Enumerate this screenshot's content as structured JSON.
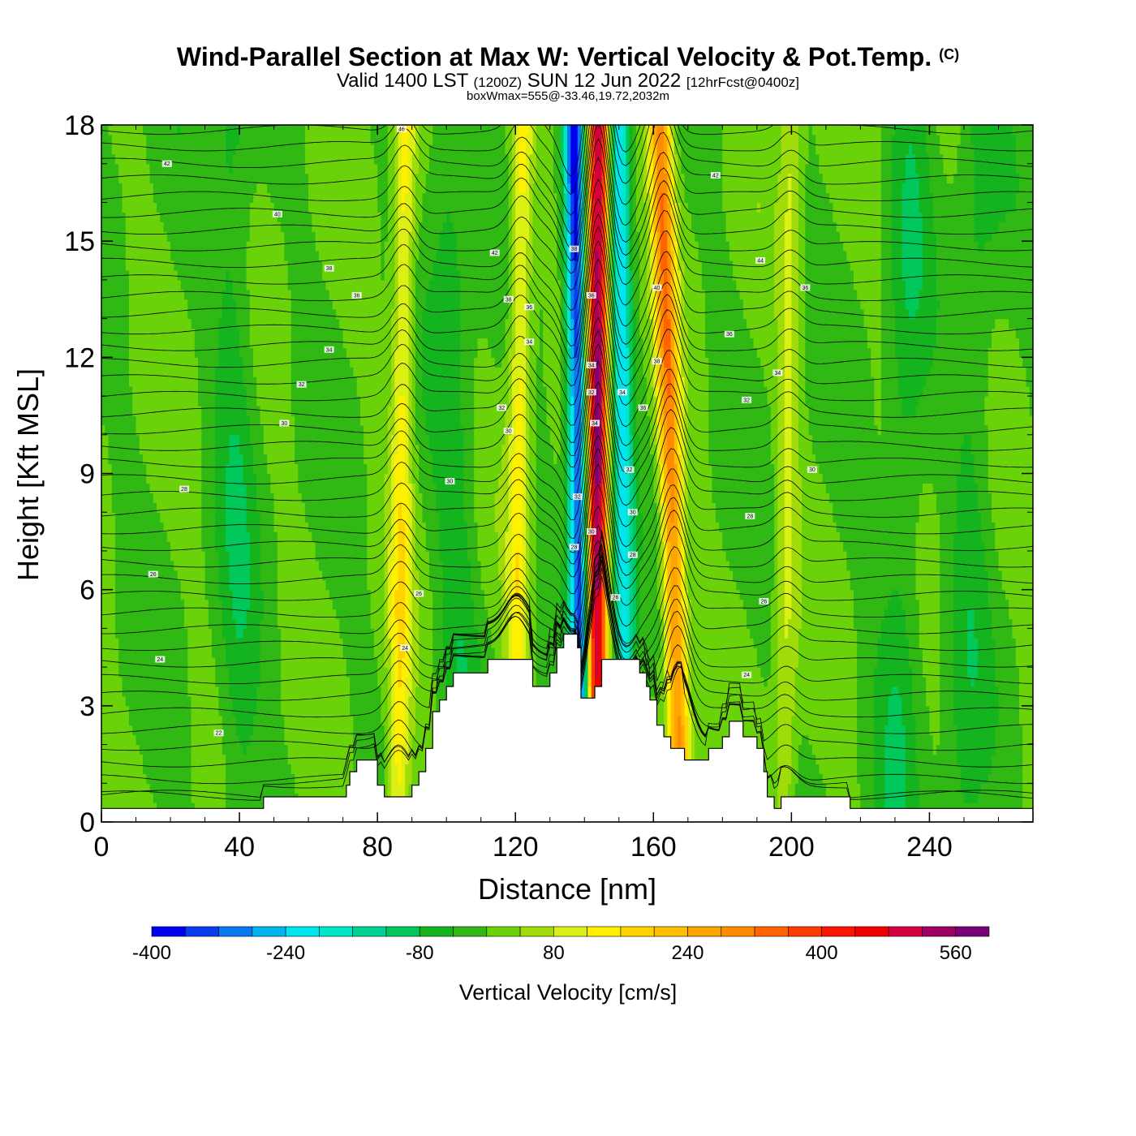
{
  "header": {
    "title": "Wind-Parallel Section at Max W: Vertical Velocity & Pot.Temp.",
    "copyright": "(C)",
    "valid_prefix": "Valid 1400 LST",
    "valid_utc": "(1200Z)",
    "valid_date": "SUN 12 Jun 2022",
    "forecast": "[12hrFcst@0400z]",
    "box_info": "boxWmax=555@-33.46,19.72,2032m"
  },
  "chart_data": {
    "type": "heatmap",
    "title": "Wind-Parallel Section at Max W: Vertical Velocity & Pot.Temp.",
    "xlabel": "Distance [nm]",
    "ylabel": "Height [Kft MSL]",
    "xlim": [
      0,
      270
    ],
    "ylim": [
      0,
      18
    ],
    "x_ticks": [
      0,
      40,
      80,
      120,
      160,
      200,
      240
    ],
    "y_ticks": [
      0,
      3,
      6,
      9,
      12,
      15,
      18
    ],
    "colorbar": {
      "label": "Vertical Velocity [cm/s]",
      "tick_values": [
        -400,
        -240,
        -80,
        80,
        240,
        400,
        560
      ],
      "tick_labels": [
        "-400",
        "-240",
        "-80",
        "80",
        "240",
        "400",
        "560"
      ],
      "bins": [
        {
          "from": -400,
          "to": -360,
          "color": "#0000f0"
        },
        {
          "from": -360,
          "to": -320,
          "color": "#0a3cf0"
        },
        {
          "from": -320,
          "to": -280,
          "color": "#0a78f0"
        },
        {
          "from": -280,
          "to": -240,
          "color": "#00b4f0"
        },
        {
          "from": -240,
          "to": -200,
          "color": "#00e6f0"
        },
        {
          "from": -200,
          "to": -160,
          "color": "#00e6c8"
        },
        {
          "from": -160,
          "to": -120,
          "color": "#00d296"
        },
        {
          "from": -120,
          "to": -80,
          "color": "#00c85a"
        },
        {
          "from": -80,
          "to": -40,
          "color": "#14b41e"
        },
        {
          "from": -40,
          "to": 0,
          "color": "#30b814"
        },
        {
          "from": 0,
          "to": 40,
          "color": "#6ad208"
        },
        {
          "from": 40,
          "to": 80,
          "color": "#a0dc0a"
        },
        {
          "from": 80,
          "to": 120,
          "color": "#dcf014"
        },
        {
          "from": 120,
          "to": 160,
          "color": "#fff000"
        },
        {
          "from": 160,
          "to": 200,
          "color": "#ffd200"
        },
        {
          "from": 200,
          "to": 240,
          "color": "#ffbe00"
        },
        {
          "from": 240,
          "to": 280,
          "color": "#ffa500"
        },
        {
          "from": 280,
          "to": 320,
          "color": "#ff8c00"
        },
        {
          "from": 320,
          "to": 360,
          "color": "#ff6400"
        },
        {
          "from": 360,
          "to": 400,
          "color": "#ff3c00"
        },
        {
          "from": 400,
          "to": 440,
          "color": "#ff1400"
        },
        {
          "from": 440,
          "to": 480,
          "color": "#f00000"
        },
        {
          "from": 480,
          "to": 520,
          "color": "#d2003c"
        },
        {
          "from": 520,
          "to": 560,
          "color": "#a00064"
        },
        {
          "from": 560,
          "to": 600,
          "color": "#780078"
        }
      ]
    },
    "background_w": 0,
    "updraft_bands": [
      {
        "x_bottom": 86,
        "x_top": 88,
        "peak": 140
      },
      {
        "x_bottom": 120,
        "x_top": 122,
        "peak": 140
      },
      {
        "x_bottom": 168,
        "x_top": 162,
        "peak": 300
      },
      {
        "x_bottom": 198,
        "x_top": 200,
        "peak": 80
      },
      {
        "x_bottom": 143,
        "x_top": 144,
        "peak": 555
      }
    ],
    "downdraft_bands": [
      {
        "x_bottom": 140,
        "x_top": 137,
        "peak": -380
      },
      {
        "x_bottom": 152,
        "x_top": 150,
        "peak": -220
      }
    ],
    "weaker_bands": [
      {
        "x_bottom": 40,
        "x_top": 38,
        "peak": -60
      },
      {
        "x_bottom": 105,
        "x_top": 100,
        "peak": -60
      },
      {
        "x_bottom": 230,
        "x_top": 235,
        "peak": -60
      },
      {
        "x_bottom": 250,
        "x_top": 255,
        "peak": -50
      }
    ],
    "terrain": [
      [
        0,
        0.35
      ],
      [
        47,
        0.35
      ],
      [
        47,
        0.65
      ],
      [
        71,
        0.65
      ],
      [
        71,
        0.95
      ],
      [
        72,
        0.95
      ],
      [
        72,
        1.3
      ],
      [
        74,
        1.3
      ],
      [
        74,
        1.6
      ],
      [
        80,
        1.6
      ],
      [
        80,
        0.95
      ],
      [
        82,
        0.95
      ],
      [
        82,
        0.65
      ],
      [
        90,
        0.65
      ],
      [
        90,
        0.95
      ],
      [
        92,
        0.95
      ],
      [
        92,
        1.3
      ],
      [
        94,
        1.3
      ],
      [
        94,
        1.9
      ],
      [
        96,
        1.9
      ],
      [
        96,
        2.85
      ],
      [
        98,
        2.85
      ],
      [
        98,
        3.15
      ],
      [
        100,
        3.15
      ],
      [
        100,
        3.5
      ],
      [
        102,
        3.5
      ],
      [
        102,
        3.85
      ],
      [
        112,
        3.85
      ],
      [
        112,
        4.2
      ],
      [
        125,
        4.2
      ],
      [
        125,
        3.5
      ],
      [
        130,
        3.5
      ],
      [
        130,
        3.85
      ],
      [
        132,
        3.85
      ],
      [
        132,
        4.5
      ],
      [
        134,
        4.5
      ],
      [
        134,
        4.85
      ],
      [
        138,
        4.85
      ],
      [
        138,
        4.5
      ],
      [
        139,
        4.5
      ],
      [
        139,
        3.2
      ],
      [
        143,
        3.2
      ],
      [
        143,
        3.5
      ],
      [
        145,
        3.5
      ],
      [
        145,
        4.2
      ],
      [
        156,
        4.2
      ],
      [
        156,
        3.85
      ],
      [
        158,
        3.85
      ],
      [
        158,
        3.5
      ],
      [
        159,
        3.5
      ],
      [
        159,
        3.15
      ],
      [
        161,
        3.15
      ],
      [
        161,
        2.5
      ],
      [
        163,
        2.5
      ],
      [
        163,
        2.2
      ],
      [
        165,
        2.2
      ],
      [
        165,
        1.9
      ],
      [
        169,
        1.9
      ],
      [
        169,
        1.6
      ],
      [
        176,
        1.6
      ],
      [
        176,
        1.9
      ],
      [
        180,
        1.9
      ],
      [
        180,
        2.2
      ],
      [
        182,
        2.2
      ],
      [
        182,
        2.6
      ],
      [
        186,
        2.6
      ],
      [
        186,
        2.2
      ],
      [
        190,
        2.2
      ],
      [
        190,
        1.9
      ],
      [
        192,
        1.9
      ],
      [
        192,
        1.3
      ],
      [
        193,
        1.3
      ],
      [
        193,
        0.65
      ],
      [
        195,
        0.65
      ],
      [
        195,
        0.35
      ],
      [
        197,
        0.35
      ],
      [
        197,
        0.65
      ],
      [
        217,
        0.65
      ],
      [
        217,
        0.35
      ],
      [
        270,
        0.35
      ]
    ],
    "contour_values": [
      24,
      26,
      28,
      30,
      32,
      34,
      36,
      38,
      40,
      42,
      44,
      46
    ],
    "contour_labels": [
      {
        "text": "42",
        "x": 19,
        "y": 17.0
      },
      {
        "text": "40",
        "x": 51,
        "y": 15.7
      },
      {
        "text": "38",
        "x": 66,
        "y": 14.3
      },
      {
        "text": "36",
        "x": 74,
        "y": 13.6
      },
      {
        "text": "34",
        "x": 66,
        "y": 12.2
      },
      {
        "text": "32",
        "x": 58,
        "y": 11.3
      },
      {
        "text": "30",
        "x": 53,
        "y": 10.3
      },
      {
        "text": "28",
        "x": 24,
        "y": 8.6
      },
      {
        "text": "26",
        "x": 15,
        "y": 6.4
      },
      {
        "text": "24",
        "x": 17,
        "y": 4.2
      },
      {
        "text": "22",
        "x": 34,
        "y": 2.3
      },
      {
        "text": "26",
        "x": 92,
        "y": 5.9
      },
      {
        "text": "24",
        "x": 88,
        "y": 4.5
      },
      {
        "text": "30",
        "x": 101,
        "y": 8.8
      },
      {
        "text": "42",
        "x": 114,
        "y": 14.7
      },
      {
        "text": "38",
        "x": 118,
        "y": 13.5
      },
      {
        "text": "36",
        "x": 124,
        "y": 13.3
      },
      {
        "text": "34",
        "x": 124,
        "y": 12.4
      },
      {
        "text": "32",
        "x": 116,
        "y": 10.7
      },
      {
        "text": "30",
        "x": 118,
        "y": 10.1
      },
      {
        "text": "46",
        "x": 87,
        "y": 17.9
      },
      {
        "text": "38",
        "x": 137,
        "y": 14.8
      },
      {
        "text": "36",
        "x": 142,
        "y": 13.6
      },
      {
        "text": "34",
        "x": 142,
        "y": 11.8
      },
      {
        "text": "32",
        "x": 142,
        "y": 11.1
      },
      {
        "text": "34",
        "x": 143,
        "y": 10.3
      },
      {
        "text": "32",
        "x": 138,
        "y": 8.4
      },
      {
        "text": "30",
        "x": 142,
        "y": 7.5
      },
      {
        "text": "28",
        "x": 137,
        "y": 7.1
      },
      {
        "text": "34",
        "x": 151,
        "y": 11.1
      },
      {
        "text": "36",
        "x": 157,
        "y": 10.7
      },
      {
        "text": "32",
        "x": 153,
        "y": 9.1
      },
      {
        "text": "30",
        "x": 154,
        "y": 8.0
      },
      {
        "text": "28",
        "x": 154,
        "y": 6.9
      },
      {
        "text": "26",
        "x": 149,
        "y": 5.8
      },
      {
        "text": "40",
        "x": 161,
        "y": 13.8
      },
      {
        "text": "38",
        "x": 161,
        "y": 11.9
      },
      {
        "text": "42",
        "x": 178,
        "y": 16.7
      },
      {
        "text": "44",
        "x": 191,
        "y": 14.5
      },
      {
        "text": "36",
        "x": 204,
        "y": 13.8
      },
      {
        "text": "36",
        "x": 182,
        "y": 12.6
      },
      {
        "text": "34",
        "x": 196,
        "y": 11.6
      },
      {
        "text": "32",
        "x": 187,
        "y": 10.9
      },
      {
        "text": "30",
        "x": 206,
        "y": 9.1
      },
      {
        "text": "28",
        "x": 188,
        "y": 7.9
      },
      {
        "text": "26",
        "x": 192,
        "y": 5.7
      },
      {
        "text": "24",
        "x": 187,
        "y": 3.8
      }
    ]
  }
}
